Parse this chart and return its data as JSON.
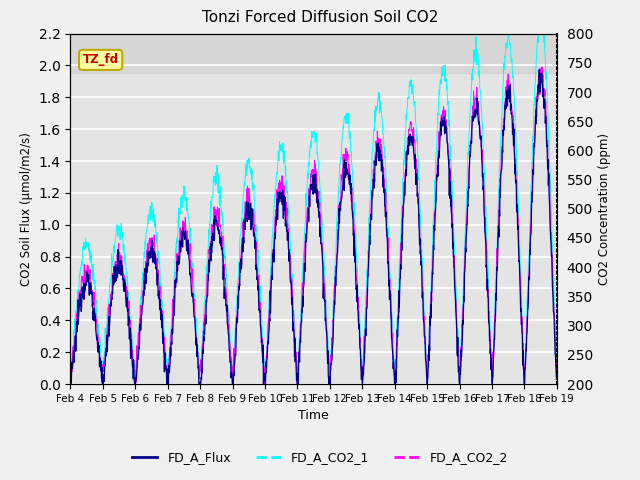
{
  "title": "Tonzi Forced Diffusion Soil CO2",
  "xlabel": "Time",
  "ylabel_left": "CO2 Soil Flux (μmol/m2/s)",
  "ylabel_right": "CO2 Concentration (ppm)",
  "ylim_left": [
    0.0,
    2.2
  ],
  "ylim_right": [
    200,
    800
  ],
  "yticks_left": [
    0.0,
    0.2,
    0.4,
    0.6,
    0.8,
    1.0,
    1.2,
    1.4,
    1.6,
    1.8,
    2.0,
    2.2
  ],
  "yticks_right": [
    200,
    250,
    300,
    350,
    400,
    450,
    500,
    550,
    600,
    650,
    700,
    750,
    800
  ],
  "xtick_positions": [
    0,
    1,
    2,
    3,
    4,
    5,
    6,
    7,
    8,
    9,
    10,
    11,
    12,
    13,
    14,
    15
  ],
  "xtick_labels": [
    "Feb 4",
    "Feb 5",
    "Feb 6",
    "Feb 7",
    "Feb 8",
    "Feb 9",
    "Feb 10",
    "Feb 11",
    "Feb 12",
    "Feb 13",
    "Feb 14",
    "Feb 15",
    "Feb 16",
    "Feb 17",
    "Feb 18",
    "Feb 19"
  ],
  "color_flux": "#00008B",
  "color_co2_1": "#00FFFF",
  "color_co2_2": "#FF00FF",
  "legend_labels": [
    "FD_A_Flux",
    "FD_A_CO2_1",
    "FD_A_CO2_2"
  ],
  "tag_text": "TZ_fd",
  "tag_bg": "#FFFFA0",
  "tag_border": "#BBAA00",
  "tag_text_color": "#CC0000",
  "background_color": "#f0f0f0",
  "inner_bg_color": "#e4e4e4",
  "grid_color": "#ffffff",
  "num_days": 15,
  "points_per_day": 96
}
